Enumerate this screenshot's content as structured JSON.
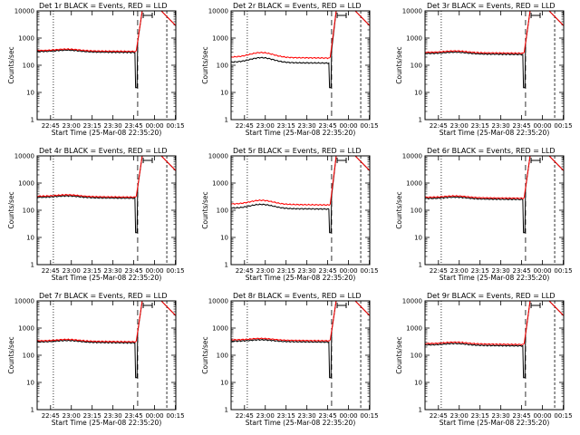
{
  "figure": {
    "background": "#ffffff",
    "foreground": "#000000"
  },
  "chart_data": [
    {
      "type": "line",
      "title": "Det 1r  BLACK = Events, RED = LLD",
      "xlabel": "Start Time (25-Mar-08 22:35:20)",
      "ylabel": "Counts/sec",
      "yscale": "log",
      "ylim": [
        1,
        10000
      ],
      "x_tick_labels": [
        "22:45",
        "23:00",
        "23:15",
        "23:30",
        "23:45",
        "00:00",
        "00:15"
      ],
      "y_tick_labels": [
        "1",
        "10",
        "100",
        "1000",
        "10000"
      ],
      "base_events": 320,
      "base_lld": 350,
      "bump": 1.15,
      "series": [
        {
          "name": "Events",
          "color": "#000000"
        },
        {
          "name": "LLD",
          "color": "#ff0000"
        }
      ]
    },
    {
      "type": "line",
      "title": "Det 2r  BLACK = Events, RED = LLD",
      "xlabel": "Start Time (25-Mar-08 22:35:20)",
      "ylabel": "Counts/sec",
      "yscale": "log",
      "ylim": [
        1,
        10000
      ],
      "x_tick_labels": [
        "22:45",
        "23:00",
        "23:15",
        "23:30",
        "23:45",
        "00:00",
        "00:15"
      ],
      "y_tick_labels": [
        "1",
        "10",
        "100",
        "1000",
        "10000"
      ],
      "base_events": 130,
      "base_lld": 200,
      "bump": 1.5,
      "series": [
        {
          "name": "Events",
          "color": "#000000"
        },
        {
          "name": "LLD",
          "color": "#ff0000"
        }
      ]
    },
    {
      "type": "line",
      "title": "Det 3r  BLACK = Events, RED = LLD",
      "xlabel": "Start Time (25-Mar-08 22:35:20)",
      "ylabel": "Counts/sec",
      "yscale": "log",
      "ylim": [
        1,
        10000
      ],
      "x_tick_labels": [
        "22:45",
        "23:00",
        "23:15",
        "23:30",
        "23:45",
        "00:00",
        "00:15"
      ],
      "y_tick_labels": [
        "1",
        "10",
        "100",
        "1000",
        "10000"
      ],
      "base_events": 270,
      "base_lld": 300,
      "bump": 1.15,
      "series": [
        {
          "name": "Events",
          "color": "#000000"
        },
        {
          "name": "LLD",
          "color": "#ff0000"
        }
      ]
    },
    {
      "type": "line",
      "title": "Det 4r  BLACK = Events, RED = LLD",
      "xlabel": "Start Time (25-Mar-08 22:35:20)",
      "ylabel": "Counts/sec",
      "yscale": "log",
      "ylim": [
        1,
        10000
      ],
      "x_tick_labels": [
        "22:45",
        "23:00",
        "23:15",
        "23:30",
        "23:45",
        "00:00",
        "00:15"
      ],
      "y_tick_labels": [
        "1",
        "10",
        "100",
        "1000",
        "10000"
      ],
      "base_events": 300,
      "base_lld": 330,
      "bump": 1.15,
      "series": [
        {
          "name": "Events",
          "color": "#000000"
        },
        {
          "name": "LLD",
          "color": "#ff0000"
        }
      ]
    },
    {
      "type": "line",
      "title": "Det 5r  BLACK = Events, RED = LLD",
      "xlabel": "Start Time (25-Mar-08 22:35:20)",
      "ylabel": "Counts/sec",
      "yscale": "log",
      "ylim": [
        1,
        10000
      ],
      "x_tick_labels": [
        "22:45",
        "23:00",
        "23:15",
        "23:30",
        "23:45",
        "00:00",
        "00:15"
      ],
      "y_tick_labels": [
        "1",
        "10",
        "100",
        "1000",
        "10000"
      ],
      "base_events": 120,
      "base_lld": 170,
      "bump": 1.4,
      "series": [
        {
          "name": "Events",
          "color": "#000000"
        },
        {
          "name": "LLD",
          "color": "#ff0000"
        }
      ]
    },
    {
      "type": "line",
      "title": "Det 6r  BLACK = Events, RED = LLD",
      "xlabel": "Start Time (25-Mar-08 22:35:20)",
      "ylabel": "Counts/sec",
      "yscale": "log",
      "ylim": [
        1,
        10000
      ],
      "x_tick_labels": [
        "22:45",
        "23:00",
        "23:15",
        "23:30",
        "23:45",
        "00:00",
        "00:15"
      ],
      "y_tick_labels": [
        "1",
        "10",
        "100",
        "1000",
        "10000"
      ],
      "base_events": 270,
      "base_lld": 300,
      "bump": 1.15,
      "series": [
        {
          "name": "Events",
          "color": "#000000"
        },
        {
          "name": "LLD",
          "color": "#ff0000"
        }
      ]
    },
    {
      "type": "line",
      "title": "Det 7r  BLACK = Events, RED = LLD",
      "xlabel": "Start Time (25-Mar-08 22:35:20)",
      "ylabel": "Counts/sec",
      "yscale": "log",
      "ylim": [
        1,
        10000
      ],
      "x_tick_labels": [
        "22:45",
        "23:00",
        "23:15",
        "23:30",
        "23:45",
        "00:00",
        "00:15"
      ],
      "y_tick_labels": [
        "1",
        "10",
        "100",
        "1000",
        "10000"
      ],
      "base_events": 310,
      "base_lld": 340,
      "bump": 1.15,
      "series": [
        {
          "name": "Events",
          "color": "#000000"
        },
        {
          "name": "LLD",
          "color": "#ff0000"
        }
      ]
    },
    {
      "type": "line",
      "title": "Det 8r  BLACK = Events, RED = LLD",
      "xlabel": "Start Time (25-Mar-08 22:35:20)",
      "ylabel": "Counts/sec",
      "yscale": "log",
      "ylim": [
        1,
        10000
      ],
      "x_tick_labels": [
        "22:45",
        "23:00",
        "23:15",
        "23:30",
        "23:45",
        "00:00",
        "00:15"
      ],
      "y_tick_labels": [
        "1",
        "10",
        "100",
        "1000",
        "10000"
      ],
      "base_events": 330,
      "base_lld": 370,
      "bump": 1.15,
      "series": [
        {
          "name": "Events",
          "color": "#000000"
        },
        {
          "name": "LLD",
          "color": "#ff0000"
        }
      ]
    },
    {
      "type": "line",
      "title": "Det 9r  BLACK = Events, RED = LLD",
      "xlabel": "Start Time (25-Mar-08 22:35:20)",
      "ylabel": "Counts/sec",
      "yscale": "log",
      "ylim": [
        1,
        10000
      ],
      "x_tick_labels": [
        "22:45",
        "23:00",
        "23:15",
        "23:30",
        "23:45",
        "00:00",
        "00:15"
      ],
      "y_tick_labels": [
        "1",
        "10",
        "100",
        "1000",
        "10000"
      ],
      "base_events": 240,
      "base_lld": 270,
      "bump": 1.15,
      "series": [
        {
          "name": "Events",
          "color": "#000000"
        },
        {
          "name": "LLD",
          "color": "#ff0000"
        }
      ]
    }
  ]
}
